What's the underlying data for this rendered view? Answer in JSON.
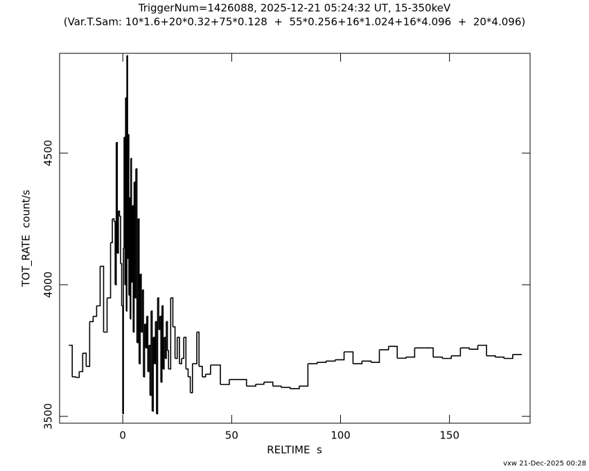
{
  "chart_data": {
    "type": "line",
    "step": "post",
    "title": "TriggerNum=1426088, 2025-12-21 05:24:32 UT, 15-350keV",
    "subtitle": "(Var.T.Sam: 10*1.6+20*0.32+75*0.128  +  55*0.256+16*1.024+16*4.096  +  20*4.096)",
    "xlabel": "RELTIME  s",
    "ylabel": "TOT_RATE  count/s",
    "footer": "vxw 21-Dec-2025 00:28",
    "color": "#000000",
    "xlim": [
      -29,
      187
    ],
    "ylim": [
      3474,
      4879
    ],
    "xticks": [
      0,
      50,
      100,
      150
    ],
    "yticks": [
      3500,
      4000,
      4500
    ],
    "x": [
      -24.8,
      -23.2,
      -21.6,
      -20,
      -18.4,
      -16.8,
      -15.2,
      -13.6,
      -12,
      -10.4,
      -8.8,
      -7.2,
      -5.6,
      -4.8,
      -4.0,
      -3.5,
      -3.0,
      -2.5,
      -2.0,
      -1.5,
      -1.0,
      -0.5,
      0.0,
      0.3,
      0.6,
      1.0,
      1.3,
      1.6,
      1.9,
      2.2,
      2.5,
      2.8,
      3.1,
      3.4,
      3.7,
      4.0,
      4.4,
      4.8,
      5.2,
      5.6,
      6.0,
      6.5,
      7.0,
      7.5,
      8.0,
      8.5,
      9.0,
      9.5,
      10,
      10.5,
      11,
      11.5,
      12,
      12.5,
      13,
      13.5,
      14,
      14.5,
      15,
      15.5,
      16,
      16.5,
      17,
      17.5,
      18,
      18.5,
      19,
      19.5,
      20,
      20.5,
      21,
      22,
      23,
      24,
      25,
      26,
      27,
      28,
      29,
      30,
      31,
      32,
      33,
      34,
      35,
      36.5,
      38,
      40.3,
      44.8,
      48.9,
      53,
      56.8,
      61,
      64.8,
      68.9,
      72.7,
      76.8,
      81,
      85,
      89.2,
      93.3,
      97.5,
      101.6,
      105.7,
      109.8,
      114,
      117.8,
      122,
      126,
      130,
      134,
      138.4,
      142.5,
      146.7,
      150.8,
      155,
      159,
      163,
      167,
      171,
      175,
      179,
      183.2
    ],
    "values": [
      3770,
      3650,
      3648,
      3670,
      3740,
      3690,
      3860,
      3880,
      3920,
      4070,
      3820,
      3950,
      4160,
      4250,
      4240,
      4000,
      4540,
      4120,
      4280,
      4260,
      4080,
      3920,
      3510,
      4140,
      4560,
      4000,
      4710,
      3900,
      4870,
      4100,
      4570,
      3960,
      4330,
      3870,
      4480,
      4010,
      4300,
      3820,
      4390,
      3950,
      4440,
      3780,
      4250,
      3700,
      4040,
      3820,
      3980,
      3650,
      3850,
      3760,
      3880,
      3670,
      3770,
      3580,
      3900,
      3520,
      3800,
      3700,
      3860,
      3510,
      3950,
      3830,
      3880,
      3630,
      3920,
      3680,
      3800,
      3720,
      3860,
      3750,
      3680,
      3950,
      3840,
      3720,
      3800,
      3700,
      3720,
      3800,
      3680,
      3650,
      3590,
      3700,
      3700,
      3820,
      3690,
      3650,
      3660,
      3695,
      3621,
      3640,
      3640,
      3615,
      3622,
      3630,
      3615,
      3610,
      3605,
      3615,
      3700,
      3705,
      3710,
      3715,
      3745,
      3700,
      3710,
      3705,
      3753,
      3766,
      3721,
      3725,
      3760,
      3760,
      3725,
      3720,
      3730,
      3760,
      3755,
      3770,
      3730,
      3725,
      3720,
      3735,
      3735
    ]
  }
}
